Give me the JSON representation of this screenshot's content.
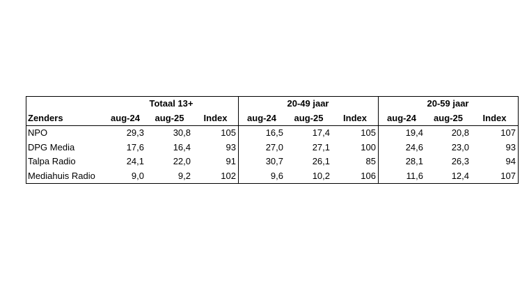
{
  "header": {
    "groups": [
      "Totaal 13+",
      "20-49 jaar",
      "20-59 jaar"
    ],
    "columns": [
      "Zenders",
      "aug-24",
      "aug-25",
      "Index",
      "aug-24",
      "aug-25",
      "Index",
      "aug-24",
      "aug-25",
      "Index"
    ]
  },
  "table": {
    "rows": [
      [
        "NPO",
        "29,3",
        "30,8",
        "105",
        "16,5",
        "17,4",
        "105",
        "19,4",
        "20,8",
        "107"
      ],
      [
        "DPG Media",
        "17,6",
        "16,4",
        "93",
        "27,0",
        "27,1",
        "100",
        "24,6",
        "23,0",
        "93"
      ],
      [
        "Talpa Radio",
        "24,1",
        "22,0",
        "91",
        "30,7",
        "26,1",
        "85",
        "28,1",
        "26,3",
        "94"
      ],
      [
        "Mediahuis Radio",
        "9,0",
        "9,2",
        "102",
        "9,6",
        "10,2",
        "106",
        "11,6",
        "12,4",
        "107"
      ]
    ]
  }
}
